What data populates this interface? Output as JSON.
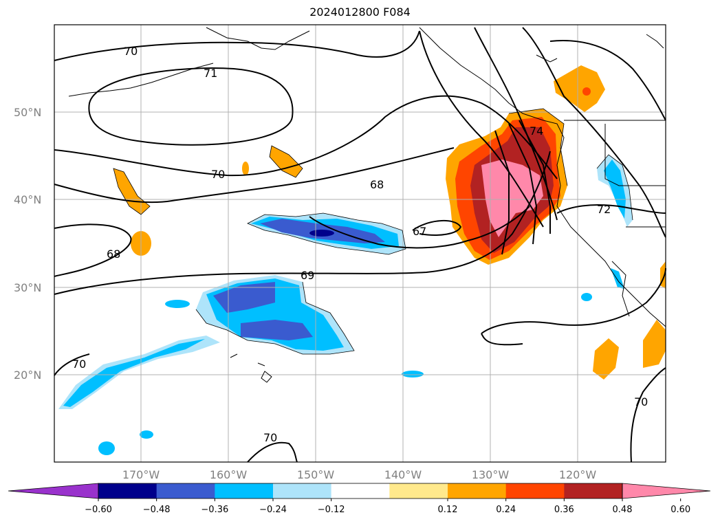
{
  "title": "2024012800 F084",
  "lat_labels": [
    "50°N",
    "40°N",
    "30°N",
    "20°N"
  ],
  "lon_labels": [
    "170°W",
    "160°W",
    "150°W",
    "140°W",
    "130°W",
    "120°W"
  ],
  "contour_labels": [
    "70",
    "71",
    "70",
    "68",
    "68",
    "67",
    "69",
    "70",
    "70",
    "72",
    "74",
    "70"
  ],
  "colorbar": {
    "ticks": [
      "−0.60",
      "−0.48",
      "−0.36",
      "−0.24",
      "−0.12",
      "0.12",
      "0.24",
      "0.36",
      "0.48",
      "0.60"
    ],
    "colors": [
      "#9932cc",
      "#00008b",
      "#3a5bcf",
      "#00bfff",
      "#aee4fa",
      "#ffffff",
      "#ffe98c",
      "#ffa500",
      "#ff4500",
      "#b22222",
      "#ff88aa"
    ]
  }
}
